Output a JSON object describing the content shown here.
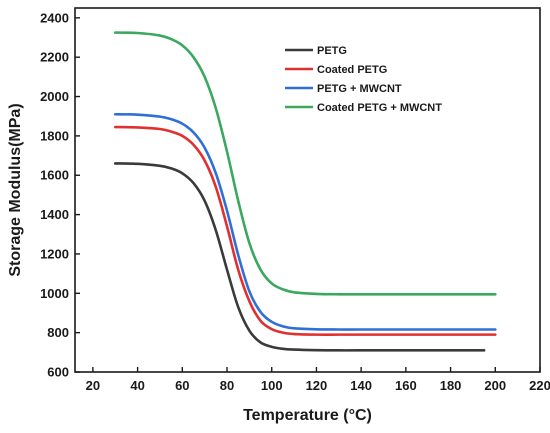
{
  "chart_data": {
    "type": "line",
    "title": "",
    "xlabel": "Temperature (°C)",
    "ylabel": "Storage Modulus(MPa)",
    "xlim": [
      12,
      220
    ],
    "ylim": [
      600,
      2450
    ],
    "xticks": [
      20,
      40,
      60,
      80,
      100,
      120,
      140,
      160,
      180,
      200,
      220
    ],
    "yticks": [
      600,
      800,
      1000,
      1200,
      1400,
      1600,
      1800,
      2000,
      2200,
      2400
    ],
    "grid": false,
    "legend_position": "top-right",
    "series": [
      {
        "name": "PETG",
        "color": "#3a3a3a",
        "x": [
          30,
          40,
          50,
          55,
          60,
          65,
          70,
          75,
          80,
          85,
          90,
          95,
          100,
          105,
          110,
          120,
          130,
          140,
          160,
          180,
          195
        ],
        "y": [
          1660,
          1658,
          1648,
          1635,
          1610,
          1560,
          1470,
          1320,
          1120,
          930,
          810,
          750,
          728,
          718,
          714,
          711,
          710,
          710,
          710,
          710,
          710
        ]
      },
      {
        "name": "Coated PETG",
        "color": "#e03030",
        "x": [
          30,
          40,
          50,
          55,
          60,
          65,
          70,
          75,
          80,
          85,
          90,
          95,
          100,
          105,
          110,
          120,
          130,
          140,
          160,
          180,
          200
        ],
        "y": [
          1845,
          1843,
          1835,
          1822,
          1800,
          1755,
          1675,
          1540,
          1340,
          1120,
          960,
          860,
          818,
          800,
          793,
          790,
          790,
          790,
          790,
          790,
          790
        ]
      },
      {
        "name": "PETG + MWCNT",
        "color": "#2f6fd6",
        "x": [
          30,
          40,
          50,
          55,
          60,
          65,
          70,
          75,
          80,
          85,
          90,
          95,
          100,
          105,
          110,
          120,
          130,
          140,
          160,
          180,
          200
        ],
        "y": [
          1910,
          1908,
          1898,
          1885,
          1862,
          1818,
          1740,
          1610,
          1420,
          1195,
          1010,
          905,
          855,
          832,
          822,
          817,
          816,
          816,
          816,
          816,
          816
        ]
      },
      {
        "name": "Coated PETG + MWCNT",
        "color": "#3aa85f",
        "x": [
          30,
          40,
          50,
          55,
          60,
          65,
          70,
          75,
          80,
          85,
          90,
          95,
          100,
          105,
          110,
          120,
          130,
          140,
          160,
          180,
          200
        ],
        "y": [
          2325,
          2323,
          2310,
          2292,
          2260,
          2200,
          2100,
          1940,
          1720,
          1470,
          1255,
          1120,
          1050,
          1020,
          1005,
          997,
          995,
          995,
          995,
          995,
          995
        ]
      }
    ]
  }
}
